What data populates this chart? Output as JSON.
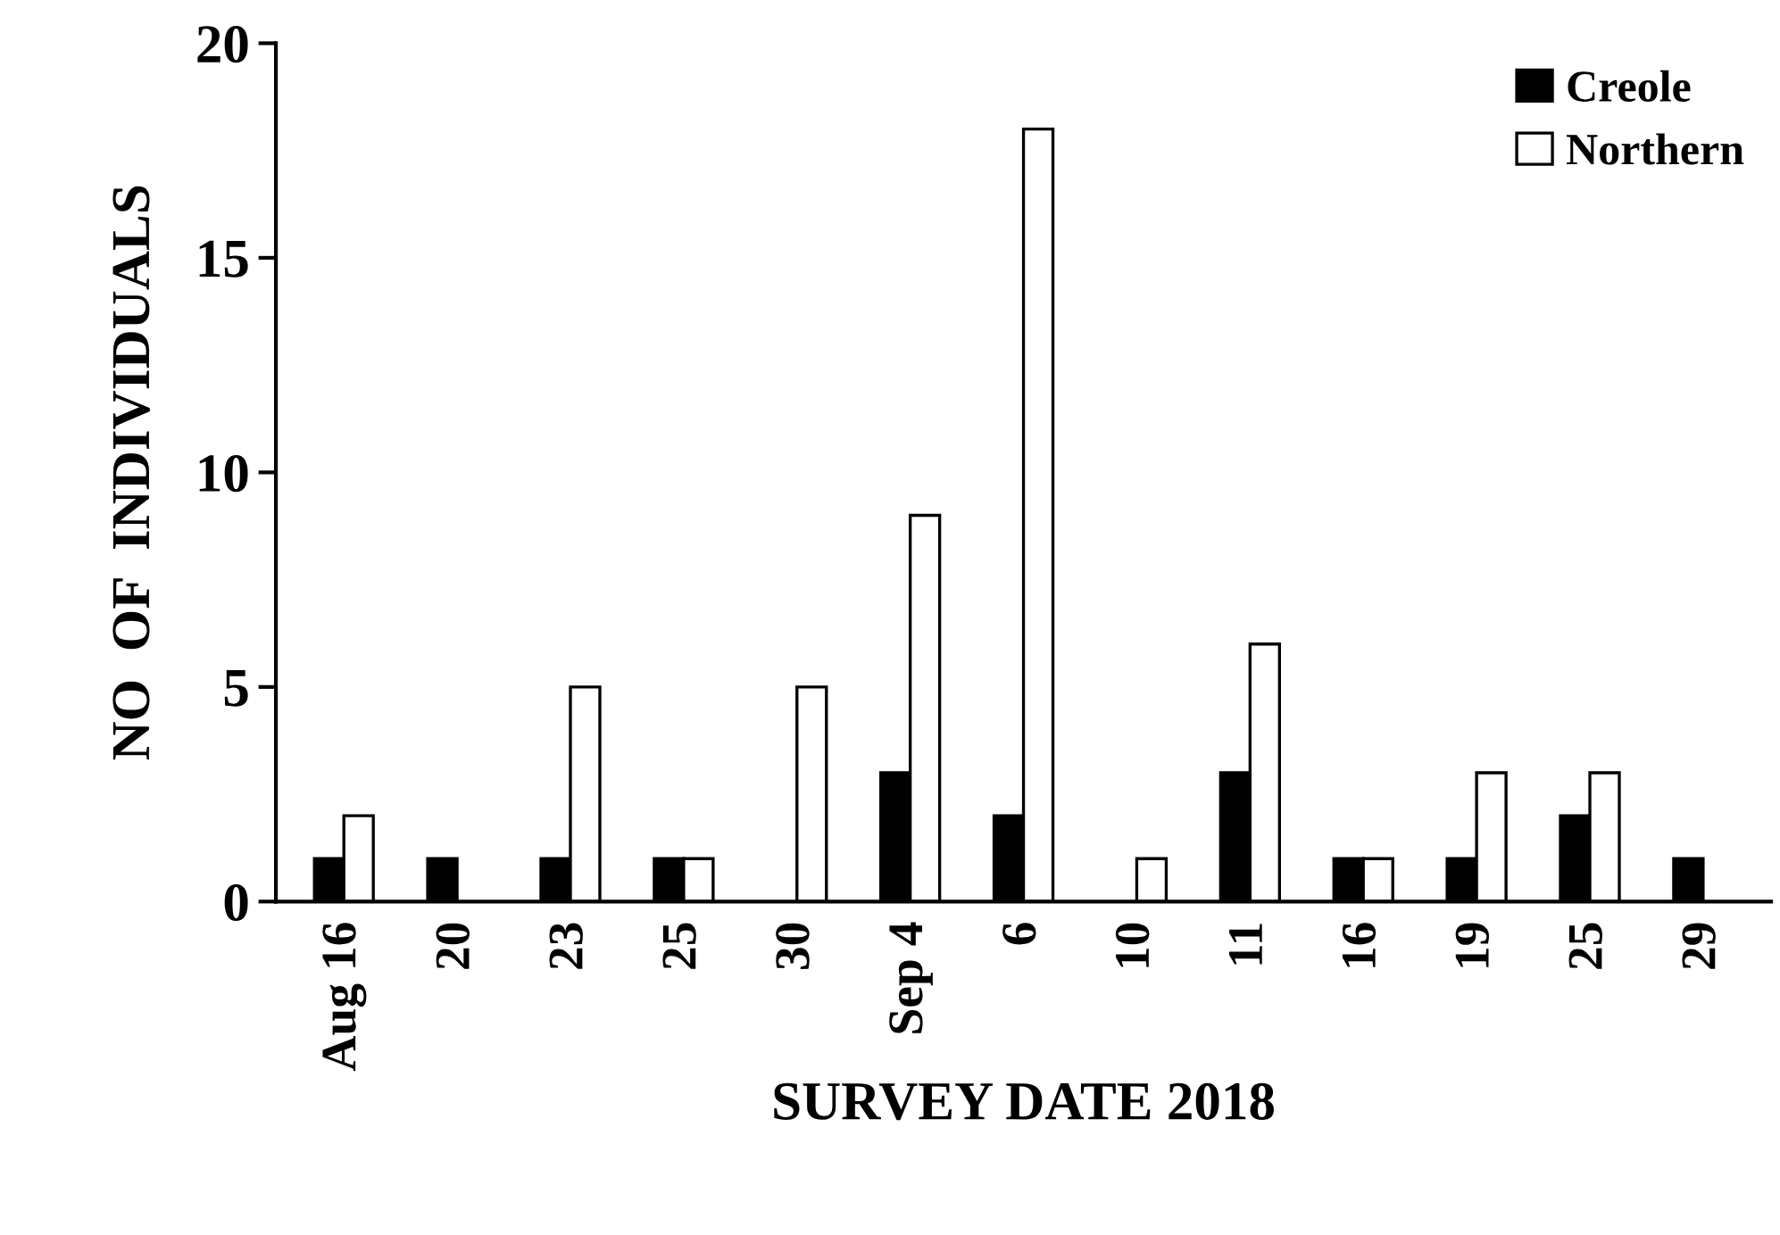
{
  "chart_data": {
    "type": "bar",
    "xlabel": "SURVEY DATE 2018",
    "ylabel": "NO  OF  INDIVIDUALS",
    "categories": [
      "Aug 16",
      "20",
      "23",
      "25",
      "30",
      "Sep 4",
      "6",
      "10",
      "11",
      "16",
      "19",
      "25",
      "29"
    ],
    "series": [
      {
        "name": "Creole",
        "color": "#000000",
        "values": [
          1,
          1,
          1,
          1,
          0,
          3,
          2,
          0,
          3,
          1,
          1,
          2,
          1
        ]
      },
      {
        "name": "Northern",
        "color": "#ffffff",
        "values": [
          2,
          0,
          5,
          1,
          5,
          9,
          18,
          1,
          6,
          1,
          3,
          3,
          0
        ]
      }
    ],
    "ylim": [
      0,
      20
    ],
    "yticks": [
      0,
      5,
      10,
      15,
      20
    ],
    "grid": false,
    "legend": "top right"
  }
}
